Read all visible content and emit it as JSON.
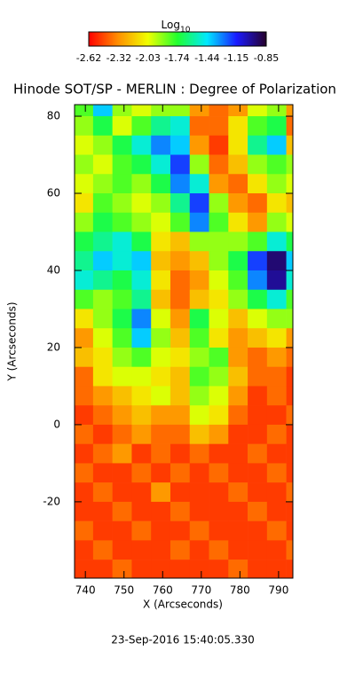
{
  "chart_data": {
    "type": "heatmap",
    "title": "Hinode SOT/SP - MERLIN : Degree of Polarization",
    "x_label": "X (Arcseconds)",
    "y_label": "Y (Arcseconds)",
    "footer": "23-Sep-2016 15:40:05.330",
    "colorbar_label": "Log",
    "colorbar_label_sub": "10",
    "colormap": [
      "#ff0000",
      "#ff9000",
      "#f0ff00",
      "#20ff30",
      "#00e8ff",
      "#1a1aff",
      "#26002a"
    ],
    "clim": [
      -2.62,
      -0.85
    ],
    "cticks": [
      -2.62,
      -2.32,
      -2.03,
      -1.74,
      -1.44,
      -1.15,
      -0.85
    ],
    "xlim": [
      737.2,
      793.7
    ],
    "ylim": [
      -39.8,
      83.0
    ],
    "xticks": [
      740,
      750,
      760,
      770,
      780,
      790
    ],
    "yticks": [
      -20,
      0,
      20,
      40,
      60,
      80
    ],
    "x_edges": [
      737.2,
      742,
      747,
      752,
      757,
      762,
      767,
      772,
      777,
      782,
      787,
      792,
      793.7
    ],
    "y_edges": [
      83.0,
      80,
      75,
      70,
      65,
      60,
      55,
      50,
      45,
      40,
      35,
      30,
      25,
      20,
      15,
      10,
      5,
      0,
      -5,
      -10,
      -15,
      -20,
      -25,
      -30,
      -35,
      -39.8
    ],
    "values": [
      [
        -1.8,
        -1.4,
        -1.9,
        -2.0,
        -1.9,
        -1.9,
        -2.3,
        -2.4,
        -2.3,
        -2.0,
        -1.9,
        -2.3
      ],
      [
        -1.9,
        -1.7,
        -2.0,
        -1.8,
        -1.6,
        -1.5,
        -2.4,
        -2.4,
        -2.1,
        -1.8,
        -1.7,
        -2.4
      ],
      [
        -2.0,
        -1.9,
        -1.7,
        -1.5,
        -1.3,
        -1.4,
        -2.3,
        -2.5,
        -2.1,
        -1.6,
        -1.4,
        -2.2
      ],
      [
        -1.9,
        -2.0,
        -1.8,
        -1.7,
        -1.5,
        -1.2,
        -1.9,
        -2.4,
        -2.2,
        -1.9,
        -1.8,
        -1.9
      ],
      [
        -2.0,
        -1.9,
        -1.8,
        -1.9,
        -1.7,
        -1.3,
        -1.5,
        -2.3,
        -2.4,
        -2.1,
        -1.9,
        -2.0
      ],
      [
        -2.1,
        -1.8,
        -1.9,
        -2.0,
        -1.9,
        -1.6,
        -1.2,
        -1.9,
        -2.3,
        -2.4,
        -2.1,
        -2.2
      ],
      [
        -1.9,
        -1.7,
        -1.8,
        -1.9,
        -2.0,
        -1.8,
        -1.3,
        -1.8,
        -2.1,
        -2.3,
        -1.9,
        -2.0
      ],
      [
        -1.7,
        -1.6,
        -1.5,
        -1.7,
        -2.1,
        -2.2,
        -1.9,
        -1.9,
        -1.9,
        -1.8,
        -1.5,
        -1.7
      ],
      [
        -1.6,
        -1.4,
        -1.5,
        -1.4,
        -2.2,
        -2.3,
        -2.2,
        -1.9,
        -1.7,
        -1.2,
        -0.95,
        -1.4
      ],
      [
        -1.5,
        -1.6,
        -1.7,
        -1.5,
        -2.1,
        -2.4,
        -2.3,
        -2.0,
        -1.8,
        -1.3,
        -1.0,
        -1.5
      ],
      [
        -1.8,
        -1.9,
        -1.8,
        -1.6,
        -2.2,
        -2.4,
        -2.2,
        -2.1,
        -1.9,
        -1.7,
        -1.5,
        -1.8
      ],
      [
        -2.1,
        -1.9,
        -1.7,
        -1.3,
        -2.0,
        -2.3,
        -1.7,
        -2.0,
        -2.2,
        -2.0,
        -1.9,
        -1.9
      ],
      [
        -2.3,
        -2.0,
        -1.8,
        -1.4,
        -1.9,
        -2.2,
        -1.8,
        -2.1,
        -2.3,
        -2.2,
        -2.1,
        -2.3
      ],
      [
        -2.2,
        -2.1,
        -1.9,
        -1.8,
        -2.0,
        -2.1,
        -1.9,
        -1.8,
        -2.3,
        -2.4,
        -2.3,
        -2.4
      ],
      [
        -2.4,
        -2.1,
        -2.0,
        -2.0,
        -2.1,
        -2.2,
        -1.8,
        -1.9,
        -2.2,
        -2.4,
        -2.4,
        -2.5
      ],
      [
        -2.4,
        -2.3,
        -2.2,
        -2.1,
        -2.0,
        -2.2,
        -1.9,
        -2.0,
        -2.3,
        -2.5,
        -2.4,
        -2.5
      ],
      [
        -2.5,
        -2.4,
        -2.3,
        -2.2,
        -2.3,
        -2.3,
        -2.0,
        -2.1,
        -2.4,
        -2.5,
        -2.5,
        -2.4
      ],
      [
        -2.4,
        -2.5,
        -2.4,
        -2.3,
        -2.4,
        -2.4,
        -2.2,
        -2.3,
        -2.5,
        -2.5,
        -2.4,
        -2.5
      ],
      [
        -2.5,
        -2.4,
        -2.3,
        -2.5,
        -2.4,
        -2.5,
        -2.4,
        -2.5,
        -2.5,
        -2.4,
        -2.5,
        -2.5
      ],
      [
        -2.4,
        -2.5,
        -2.5,
        -2.4,
        -2.5,
        -2.4,
        -2.5,
        -2.4,
        -2.5,
        -2.5,
        -2.4,
        -2.5
      ],
      [
        -2.5,
        -2.4,
        -2.5,
        -2.5,
        -2.3,
        -2.5,
        -2.5,
        -2.5,
        -2.4,
        -2.5,
        -2.5,
        -2.4
      ],
      [
        -2.5,
        -2.5,
        -2.4,
        -2.5,
        -2.5,
        -2.4,
        -2.5,
        -2.5,
        -2.5,
        -2.4,
        -2.5,
        -2.5
      ],
      [
        -2.4,
        -2.5,
        -2.5,
        -2.4,
        -2.5,
        -2.5,
        -2.4,
        -2.5,
        -2.5,
        -2.5,
        -2.4,
        -2.5
      ],
      [
        -2.5,
        -2.4,
        -2.5,
        -2.5,
        -2.5,
        -2.4,
        -2.5,
        -2.4,
        -2.5,
        -2.5,
        -2.5,
        -2.4
      ],
      [
        -2.5,
        -2.5,
        -2.4,
        -2.5,
        -2.5,
        -2.5,
        -2.5,
        -2.5,
        -2.4,
        -2.5,
        -2.5,
        -2.5
      ]
    ]
  }
}
